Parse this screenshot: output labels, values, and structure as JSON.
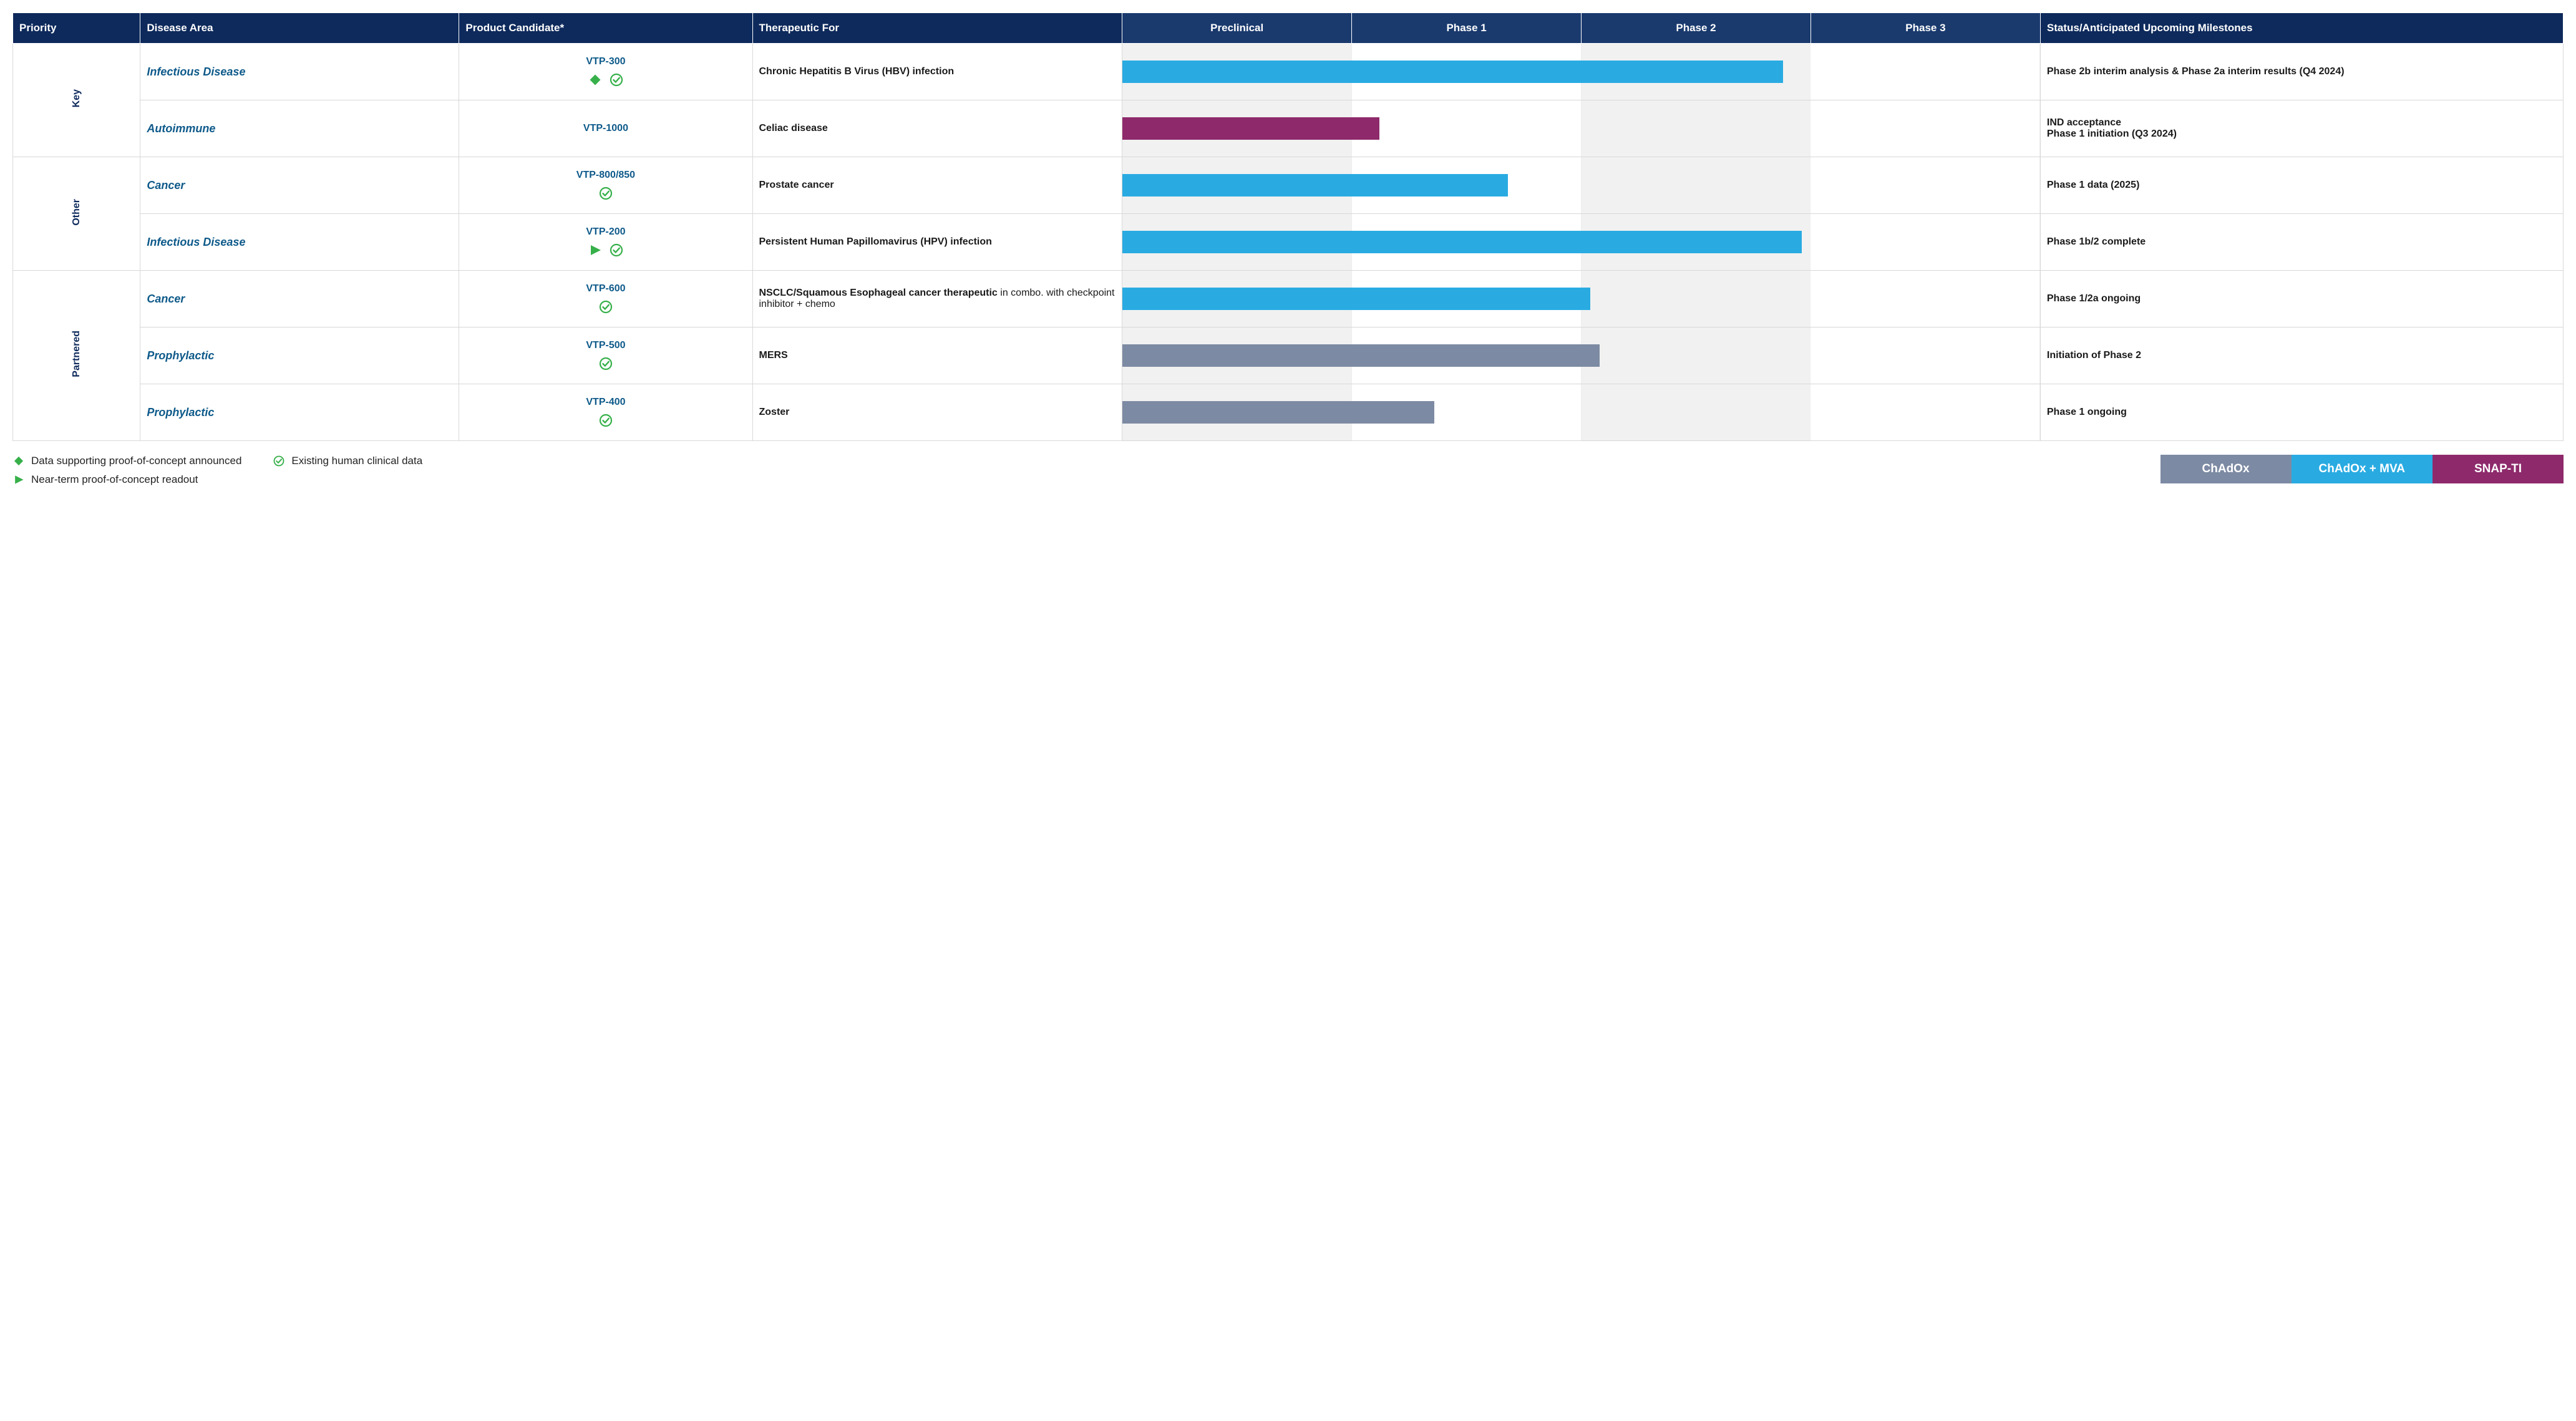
{
  "colors": {
    "header_bg": "#0e2a5c",
    "phase_header_bg": "#1a3a6e",
    "header_text": "#ffffff",
    "accent_text": "#0e5a8a",
    "row_border": "#d8d8d8",
    "phase_alt_bg": "#f1f1f1",
    "chadox": "#7d8aa3",
    "chadox_mva": "#29abe2",
    "snap_ti": "#8e2a6b",
    "icon_green": "#37b04a"
  },
  "headers": {
    "priority": "Priority",
    "disease_area": "Disease Area",
    "product": "Product Candidate*",
    "therapeutic": "Therapeutic For",
    "phases": [
      "Preclinical",
      "Phase 1",
      "Phase 2",
      "Phase 3"
    ],
    "milestones": "Status/Anticipated Upcoming Milestones"
  },
  "priority_groups": [
    {
      "label": "Key",
      "row_indices": [
        0,
        1
      ]
    },
    {
      "label": "Other",
      "row_indices": [
        2,
        3
      ]
    },
    {
      "label": "Partnered",
      "row_indices": [
        4,
        5,
        6
      ]
    }
  ],
  "rows": [
    {
      "disease_area": "Infectious Disease",
      "product": "VTP-300",
      "icons": [
        "diamond",
        "check"
      ],
      "therapeutic_html": "<b>Chronic Hepatitis B Virus (HBV) infection</b>",
      "bar": {
        "color_key": "chadox_mva",
        "fill_percent": 72
      },
      "milestone_html": "Phase 2b interim analysis & Phase 2a interim results (Q4 2024)"
    },
    {
      "disease_area": "Autoimmune",
      "product": "VTP-1000",
      "icons": [],
      "therapeutic_html": "<b>Celiac disease</b>",
      "bar": {
        "color_key": "snap_ti",
        "fill_percent": 28
      },
      "milestone_html": "IND acceptance<br>Phase 1 initiation (Q3 2024)"
    },
    {
      "disease_area": "Cancer",
      "product": "VTP-800/850",
      "icons": [
        "check"
      ],
      "therapeutic_html": "<b>Prostate cancer</b>",
      "bar": {
        "color_key": "chadox_mva",
        "fill_percent": 42
      },
      "milestone_html": "Phase 1 data (2025)"
    },
    {
      "disease_area": "Infectious Disease",
      "product": "VTP-200",
      "icons": [
        "triangle",
        "check"
      ],
      "therapeutic_html": "<b>Persistent Human Papillomavirus (HPV) infection</b>",
      "bar": {
        "color_key": "chadox_mva",
        "fill_percent": 74
      },
      "milestone_html": "Phase 1b/2 complete"
    },
    {
      "disease_area": "Cancer",
      "product": "VTP-600",
      "icons": [
        "check"
      ],
      "therapeutic_html": "<b>NSCLC/Squamous Esophageal cancer  therapeutic</b> <span class='light'>in combo. with checkpoint inhibitor + chemo</span>",
      "bar": {
        "color_key": "chadox_mva",
        "fill_percent": 51
      },
      "milestone_html": "Phase 1/2a ongoing"
    },
    {
      "disease_area": "Prophylactic",
      "product": "VTP-500",
      "icons": [
        "check"
      ],
      "therapeutic_html": "<b>MERS</b>",
      "bar": {
        "color_key": "chadox",
        "fill_percent": 52
      },
      "milestone_html": "Initiation of Phase 2"
    },
    {
      "disease_area": "Prophylactic",
      "product": "VTP-400",
      "icons": [
        "check"
      ],
      "therapeutic_html": "<b>Zoster</b>",
      "bar": {
        "color_key": "chadox",
        "fill_percent": 34
      },
      "milestone_html": "Phase 1 ongoing"
    }
  ],
  "legend_icons": [
    {
      "icon": "diamond",
      "label": "Data supporting proof-of-concept announced"
    },
    {
      "icon": "check",
      "label": "Existing human clinical data"
    },
    {
      "icon": "triangle",
      "label": "Near-term proof-of-concept readout"
    }
  ],
  "legend_boxes": [
    {
      "label": "ChAdOx",
      "color_key": "chadox"
    },
    {
      "label": "ChAdOx + MVA",
      "color_key": "chadox_mva"
    },
    {
      "label": "SNAP-TI",
      "color_key": "snap_ti"
    }
  ]
}
